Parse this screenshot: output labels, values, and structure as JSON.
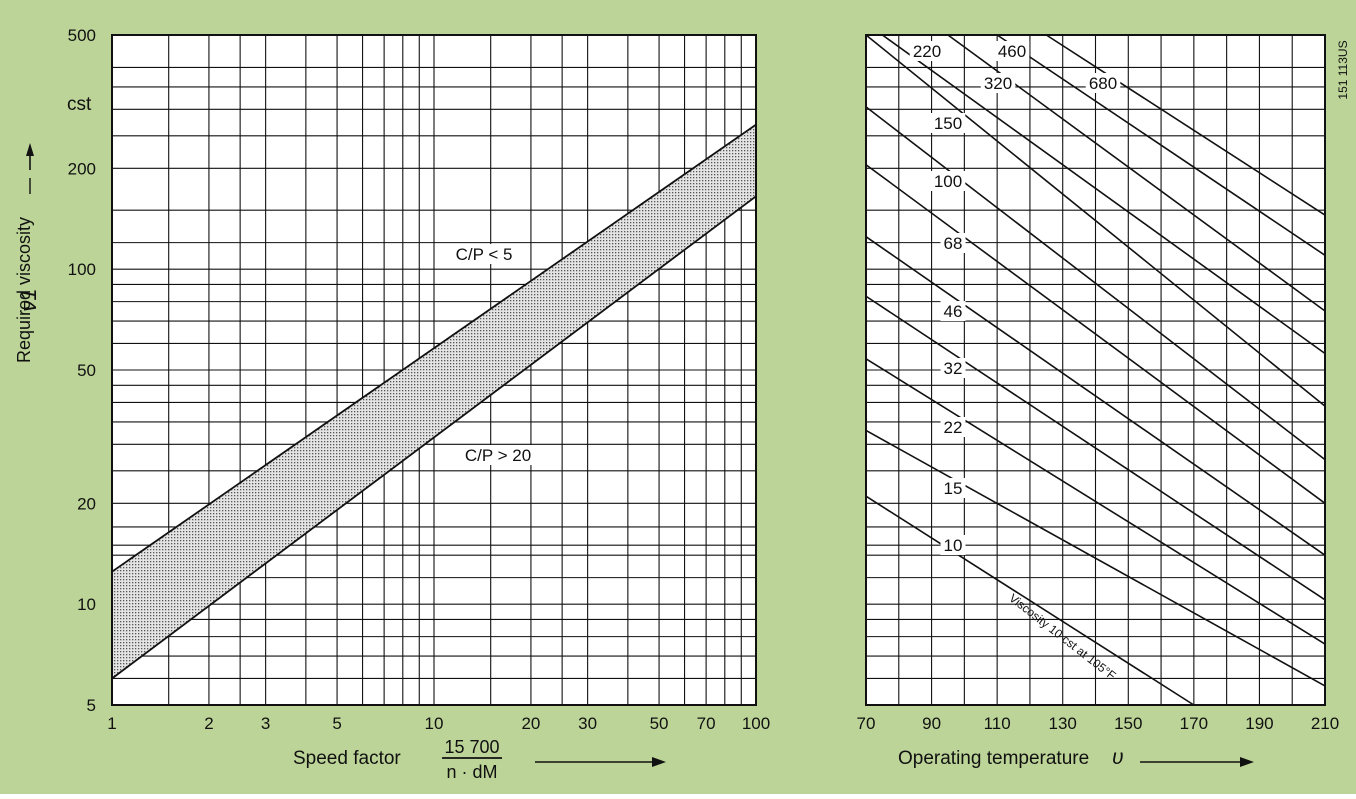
{
  "colors": {
    "background": "#bcd497",
    "plot_background": "#ffffff",
    "ink": "#111111",
    "band_fill": "#b8b8b8"
  },
  "chart_data": [
    {
      "type": "line",
      "xscale": "log",
      "yscale": "log",
      "xlim": [
        1,
        100
      ],
      "ylim": [
        5,
        500
      ],
      "grid": true,
      "xlabel": "Speed factor",
      "xlabel_fraction": {
        "numerator": "15 700",
        "denominator": "n · dM"
      },
      "ylabel": "Required viscosity",
      "ylabel_symbol": "ν1",
      "yunit": "cst",
      "x_ticks": [
        "1",
        "2",
        "3",
        "5",
        "10",
        "20",
        "30",
        "50",
        "70",
        "100"
      ],
      "y_ticks": [
        "5",
        "10",
        "20",
        "50",
        "100",
        "200",
        "500"
      ],
      "series": [
        {
          "name": "C/P < 5",
          "x": [
            1,
            100
          ],
          "y": [
            12.5,
            270
          ]
        },
        {
          "name": "C/P > 20",
          "x": [
            1,
            100
          ],
          "y": [
            6,
            165
          ]
        }
      ],
      "shaded_band": {
        "between": [
          "C/P < 5",
          "C/P > 20"
        ]
      }
    },
    {
      "type": "line",
      "xscale": "linear",
      "yscale": "log",
      "xlim": [
        70,
        210
      ],
      "ylim": [
        5,
        500
      ],
      "grid": true,
      "xlabel": "Operating temperature",
      "xlabel_symbol": "υ",
      "x_ticks": [
        "70",
        "90",
        "110",
        "130",
        "150",
        "170",
        "190",
        "210"
      ],
      "figure_id": "151 113US",
      "annotation": "Viscosity 10 cst at 105°F",
      "series": [
        {
          "name": "10",
          "x": [
            70,
            170
          ],
          "y": [
            21,
            5
          ]
        },
        {
          "name": "15",
          "x": [
            70,
            210
          ],
          "y": [
            33,
            5.7
          ]
        },
        {
          "name": "22",
          "x": [
            70,
            210
          ],
          "y": [
            54,
            7.6
          ]
        },
        {
          "name": "32",
          "x": [
            70,
            210
          ],
          "y": [
            83,
            10.3
          ]
        },
        {
          "name": "46",
          "x": [
            70,
            210
          ],
          "y": [
            125,
            14
          ]
        },
        {
          "name": "68",
          "x": [
            70,
            210
          ],
          "y": [
            205,
            20
          ]
        },
        {
          "name": "100",
          "x": [
            70,
            210
          ],
          "y": [
            305,
            27
          ]
        },
        {
          "name": "150",
          "x": [
            70,
            210
          ],
          "y": [
            500,
            39
          ]
        },
        {
          "name": "220",
          "x": [
            75,
            210
          ],
          "y": [
            500,
            56
          ]
        },
        {
          "name": "320",
          "x": [
            95,
            210
          ],
          "y": [
            500,
            75
          ]
        },
        {
          "name": "460",
          "x": [
            110,
            210
          ],
          "y": [
            500,
            110
          ]
        },
        {
          "name": "680",
          "x": [
            125,
            210
          ],
          "y": [
            500,
            145
          ]
        }
      ]
    }
  ]
}
